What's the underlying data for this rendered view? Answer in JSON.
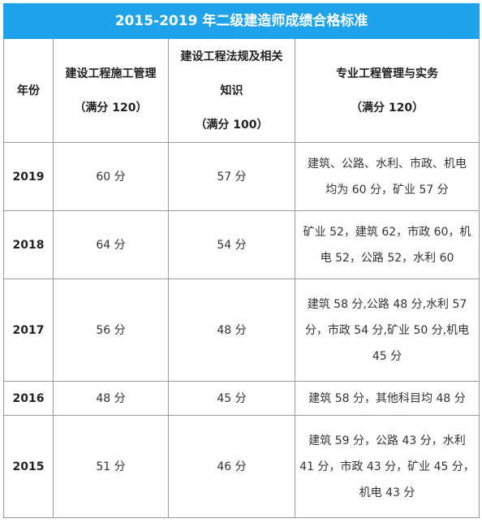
{
  "title": "2015-2019 年二级建造师成绩合格标准",
  "headers": {
    "year": "年份",
    "col1": [
      "建设工程施工管理",
      "（满分 120）"
    ],
    "col2": [
      "建设工程法规及相关",
      "知识",
      "（满分 100）"
    ],
    "col3": [
      "专业工程管理与实务",
      "（满分 120）"
    ]
  },
  "rows": [
    {
      "year": "2019",
      "c1": "60 分",
      "c2": "57 分",
      "c3": [
        "建筑、公路、水利、市政、机电",
        "均为 60 分，矿业 57 分"
      ]
    },
    {
      "year": "2018",
      "c1": "64 分",
      "c2": "54 分",
      "c3": [
        "矿业 52，建筑 62，市政 60，机",
        "电 52，公路 52，水利 60"
      ]
    },
    {
      "year": "2017",
      "c1": "56 分",
      "c2": "48 分",
      "c3": [
        "建筑 58 分,公路 48 分,水利 57",
        "分，市政 54 分,矿业 50 分,机电",
        "45 分"
      ]
    },
    {
      "year": "2016",
      "c1": "48 分",
      "c2": "45 分",
      "c3": [
        "建筑 58 分，其他科目均 48 分"
      ]
    },
    {
      "year": "2015",
      "c1": "51 分",
      "c2": "46 分",
      "c3": [
        "建筑 59 分，公路 43 分，水利",
        "41 分，市政 43 分，矿业 45 分，",
        "机电 43 分"
      ]
    }
  ]
}
